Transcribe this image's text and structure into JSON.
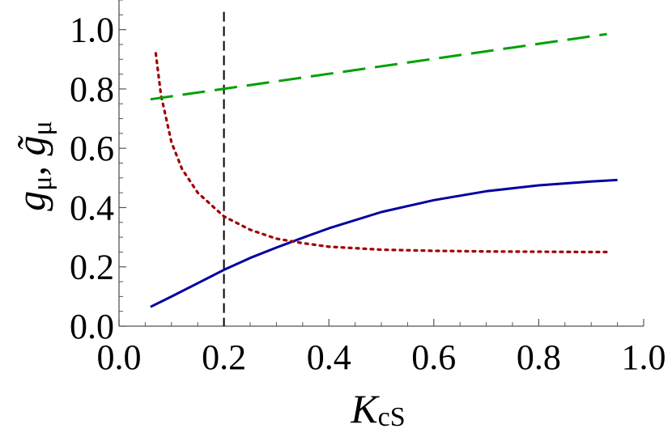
{
  "chart_data": {
    "type": "line",
    "xlabel": "K",
    "xlabel_sub": "cS",
    "ylabel_main": "g",
    "ylabel_sub": "μ",
    "ylabel_sep": ", ",
    "ylabel_tilde": "g̃",
    "xlim": [
      0.0,
      1.0
    ],
    "ylim": [
      0.0,
      1.1
    ],
    "x_ticks": [
      0.0,
      0.2,
      0.4,
      0.6,
      0.8,
      1.0
    ],
    "y_ticks": [
      0.0,
      0.2,
      0.4,
      0.6,
      0.8,
      1.0
    ],
    "x_tick_labels": [
      "0.0",
      "0.2",
      "0.4",
      "0.6",
      "0.8",
      "1.0"
    ],
    "y_tick_labels": [
      "0.0",
      "0.2",
      "0.4",
      "0.6",
      "0.8",
      "1.0"
    ],
    "grid": false,
    "series": [
      {
        "style": "solid",
        "color": "#00009f",
        "x": [
          0.06,
          0.1,
          0.15,
          0.2,
          0.25,
          0.3,
          0.35,
          0.4,
          0.5,
          0.6,
          0.7,
          0.8,
          0.9,
          0.95
        ],
        "y": [
          0.065,
          0.1,
          0.145,
          0.19,
          0.23,
          0.265,
          0.298,
          0.33,
          0.385,
          0.425,
          0.455,
          0.475,
          0.488,
          0.493
        ]
      },
      {
        "style": "dotted",
        "color": "#a00000",
        "x": [
          0.07,
          0.08,
          0.1,
          0.12,
          0.15,
          0.2,
          0.25,
          0.3,
          0.35,
          0.4,
          0.5,
          0.6,
          0.7,
          0.8,
          0.9,
          0.93
        ],
        "y": [
          0.92,
          0.78,
          0.62,
          0.53,
          0.45,
          0.37,
          0.325,
          0.295,
          0.28,
          0.268,
          0.258,
          0.254,
          0.252,
          0.251,
          0.25,
          0.25
        ]
      },
      {
        "style": "dashed",
        "color": "#00a000",
        "x": [
          0.06,
          0.93
        ],
        "y": [
          0.765,
          0.985
        ]
      }
    ],
    "vline": {
      "x": 0.2,
      "style": "dashed",
      "color": "#000000"
    }
  }
}
